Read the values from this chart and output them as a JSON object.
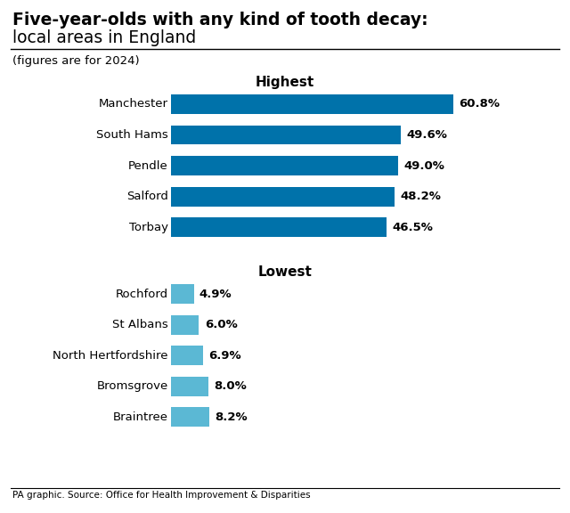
{
  "title_line1": "Five-year-olds with any kind of tooth decay:",
  "title_line2": "local areas in England",
  "subtitle": "(figures are for 2024)",
  "highest_label": "Highest",
  "lowest_label": "Lowest",
  "highest_categories": [
    "Manchester",
    "South Hams",
    "Pendle",
    "Salford",
    "Torbay"
  ],
  "highest_values": [
    60.8,
    49.6,
    49.0,
    48.2,
    46.5
  ],
  "highest_labels": [
    "60.8%",
    "49.6%",
    "49.0%",
    "48.2%",
    "46.5%"
  ],
  "lowest_categories": [
    "Rochford",
    "St Albans",
    "North Hertfordshire",
    "Bromsgrove",
    "Braintree"
  ],
  "lowest_values": [
    4.9,
    6.0,
    6.9,
    8.0,
    8.2
  ],
  "lowest_labels": [
    "4.9%",
    "6.0%",
    "6.9%",
    "8.0%",
    "8.2%"
  ],
  "high_bar_color": "#0072AA",
  "low_bar_color": "#5BB8D4",
  "background_color": "#ffffff",
  "footer": "PA graphic. Source: Office for Health Improvement & Disparities",
  "xlim_max": 70
}
